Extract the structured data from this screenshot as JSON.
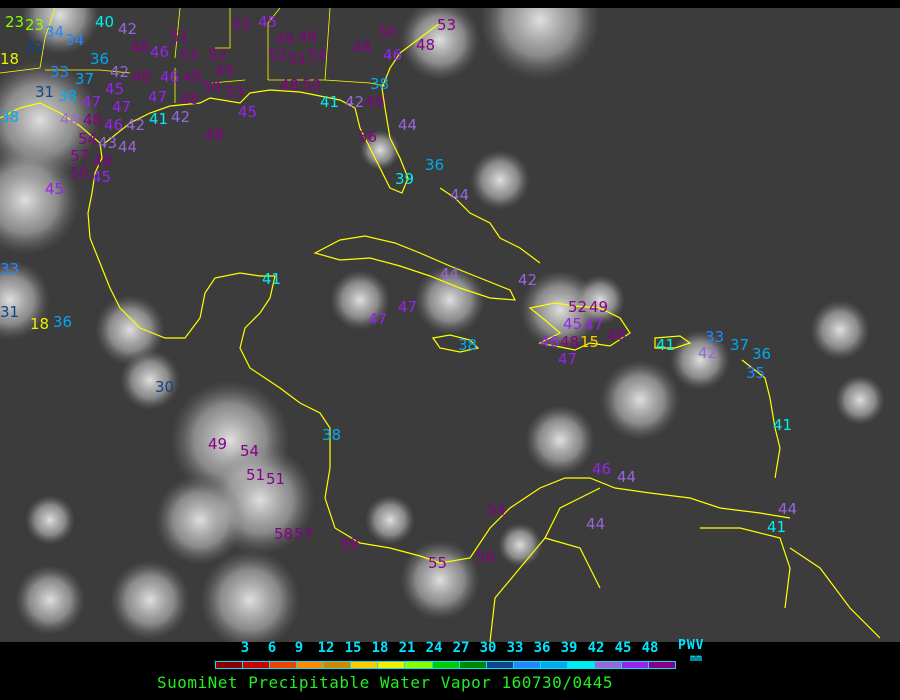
{
  "map": {
    "background": "infrared satellite imagery",
    "coastline_color": "#ffff00",
    "stations": [
      23,
      23,
      34,
      34,
      32,
      18,
      36,
      33,
      37,
      42,
      48,
      31,
      38,
      45,
      47,
      47,
      48,
      48,
      44,
      48,
      46,
      47,
      42,
      41,
      42,
      54,
      43,
      48,
      44,
      57,
      50,
      45,
      45,
      38,
      40,
      42,
      48,
      46,
      51,
      46,
      51,
      49,
      52,
      49,
      50,
      55,
      45,
      52,
      51,
      52,
      49,
      49,
      48,
      50,
      53,
      45,
      48,
      50,
      46,
      53,
      48,
      38,
      41,
      42,
      49,
      56,
      44,
      36,
      39,
      44,
      33,
      31,
      18,
      36,
      41,
      47,
      47,
      44,
      42,
      52,
      49,
      45,
      47,
      15,
      46,
      47,
      48,
      48,
      38,
      41,
      33,
      42,
      37,
      36,
      35,
      41,
      30,
      38,
      49,
      54,
      51,
      51,
      58,
      57,
      59,
      55,
      56,
      54,
      46,
      44,
      44,
      44,
      41
    ]
  },
  "legend": {
    "ticks": [
      "3",
      "6",
      "9",
      "12",
      "15",
      "18",
      "21",
      "24",
      "27",
      "30",
      "33",
      "36",
      "39",
      "42",
      "45",
      "48"
    ],
    "unit_label": "PWV",
    "unit": "mm",
    "colors": [
      "#8b0000",
      "#cc0000",
      "#ee4400",
      "#ff8800",
      "#cc8800",
      "#ffcc00",
      "#eeee00",
      "#88ff00",
      "#00cc00",
      "#008800",
      "#114488",
      "#2288ff",
      "#00aaee",
      "#00eeee",
      "#9966dd",
      "#9922ee",
      "#880088"
    ]
  },
  "caption": "SuomiNet Precipitable Water Vapor 160730/0445"
}
